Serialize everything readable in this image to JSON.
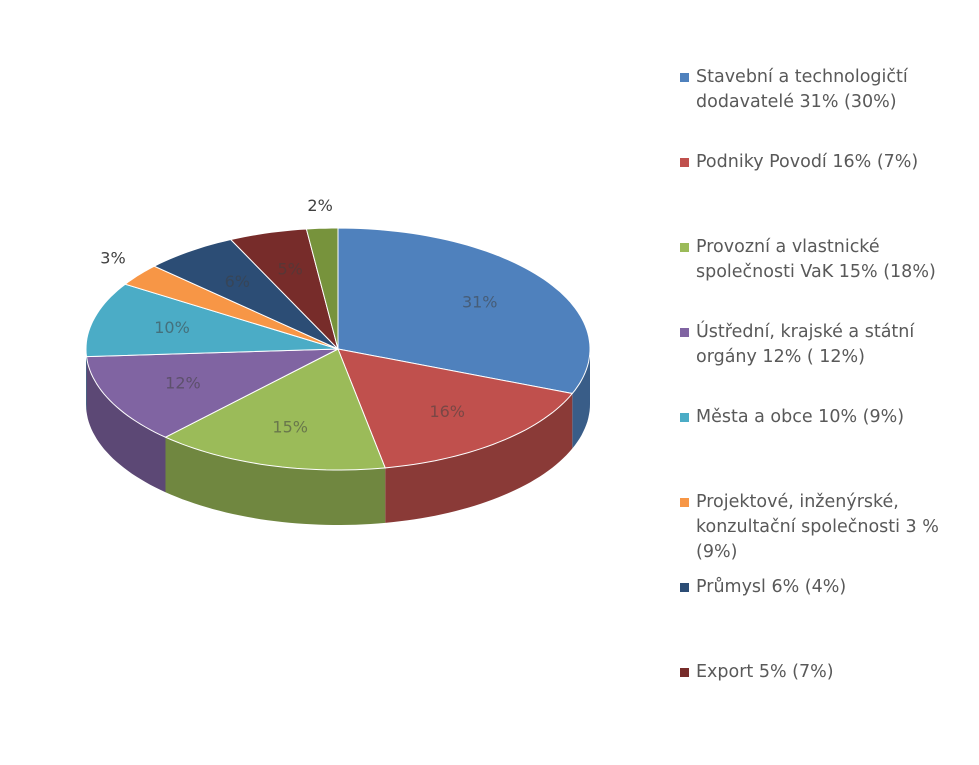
{
  "chart_data": {
    "type": "pie",
    "categories": [
      "Stavební a technologičtí dodavatelé 31% (30%)",
      "Podniky Povodí 16% (7%)",
      "Provozní a vlastnické společnosti VaK 15% (18%)",
      "Ústřední, krajské a státní orgány 12% ( 12%)",
      "Města a obce 10% (9%)",
      "Projektové, inženýrské, konzultační společnosti 3 % (9%)",
      "Průmysl 6% (4%)",
      "Export 5% (7%)",
      null
    ],
    "values": [
      31,
      16,
      15,
      12,
      10,
      3,
      6,
      5,
      2
    ],
    "value_labels": [
      "31%",
      "16%",
      "15%",
      "12%",
      "10%",
      "3%",
      "6%",
      "5%",
      "2%"
    ],
    "colors": [
      "#4f81bd",
      "#c0504d",
      "#9bbb59",
      "#8064a2",
      "#4bacc6",
      "#f79646",
      "#2c4d75",
      "#772c2a",
      "#77933c"
    ],
    "legend": "right"
  }
}
